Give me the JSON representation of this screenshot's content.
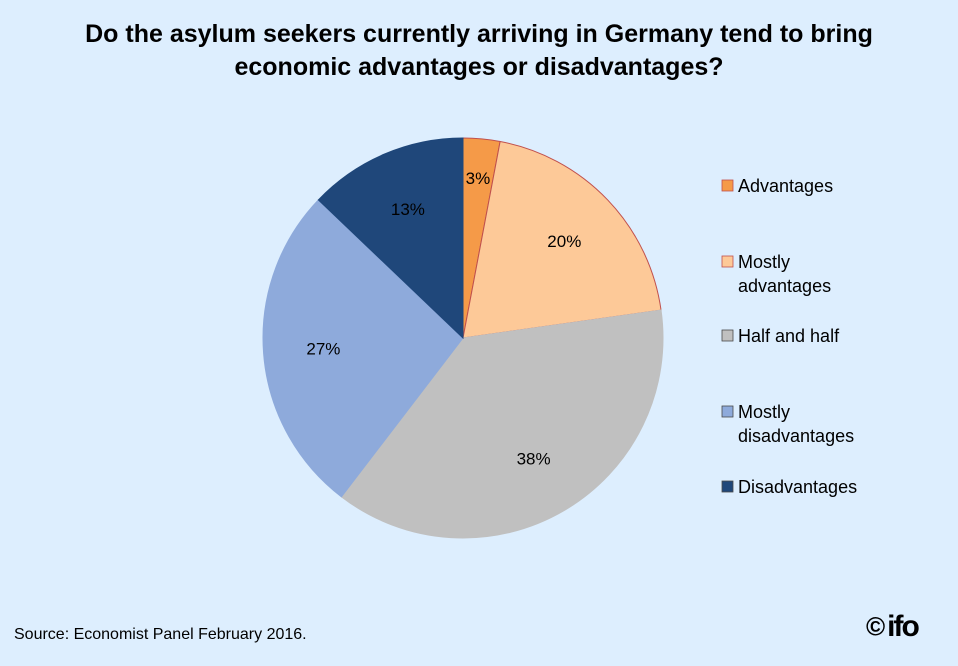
{
  "chart_data": {
    "type": "pie",
    "title_lines": [
      "Do the asylum seekers currently arriving in Germany tend to bring",
      "economic advantages or disadvantages?"
    ],
    "slices": [
      {
        "name": "Advantages",
        "legend_lines": [
          "Advantages"
        ],
        "value": 3,
        "label": "3%",
        "color": "#f59a48"
      },
      {
        "name": "Mostly advantages",
        "legend_lines": [
          "Mostly",
          "advantages"
        ],
        "value": 20,
        "label": "20%",
        "color": "#fdc998"
      },
      {
        "name": "Half and half",
        "legend_lines": [
          "Half and half"
        ],
        "value": 38,
        "label": "38%",
        "color": "#c0c0c0"
      },
      {
        "name": "Mostly disadvantages",
        "legend_lines": [
          "Mostly",
          "disadvantages"
        ],
        "value": 27,
        "label": "27%",
        "color": "#8eaadb"
      },
      {
        "name": "Disadvantages",
        "legend_lines": [
          "Disadvantages"
        ],
        "value": 13,
        "label": "13%",
        "color": "#1f477a"
      }
    ],
    "start_angle": "12 o'clock",
    "direction": "clockwise",
    "legend_position": "right"
  },
  "footer": {
    "source": "Source: Economist Panel February 2016.",
    "logo_symbol": "©",
    "logo_word": "ifo"
  }
}
